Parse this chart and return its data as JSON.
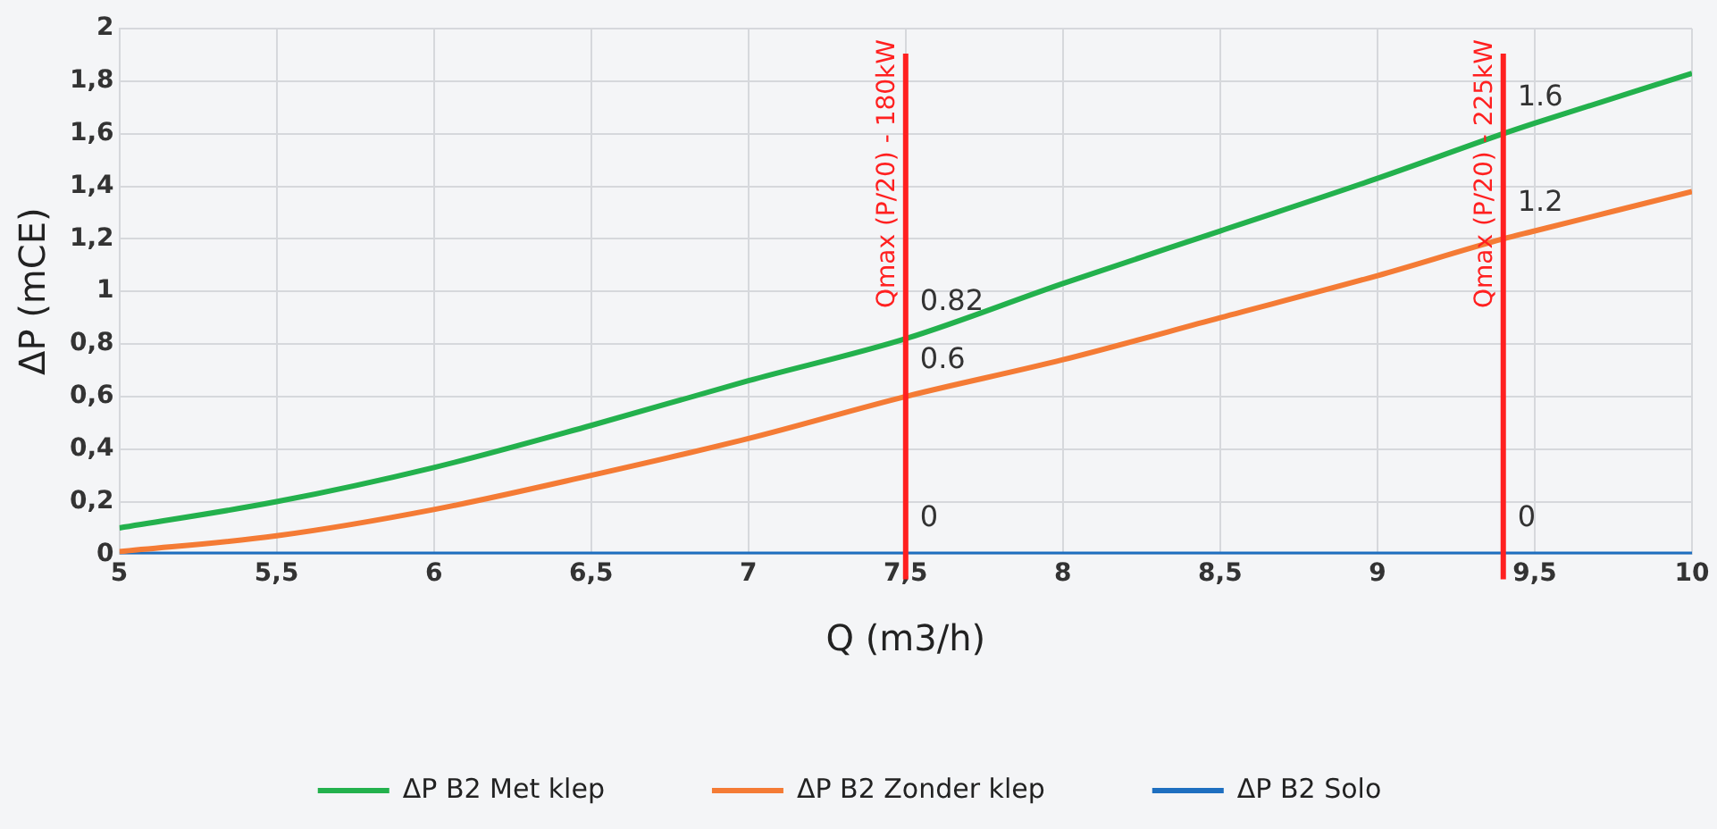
{
  "chart_data": {
    "type": "line",
    "xlabel": "Q (m3/h)",
    "ylabel": "ΔP (mCE)",
    "x": [
      5,
      5.5,
      6,
      6.5,
      7,
      7.5,
      8,
      8.5,
      9,
      9.4,
      9.5,
      10
    ],
    "series": [
      {
        "name": "ΔP B2 Met klep",
        "color": "#23b14d",
        "values": [
          0.1,
          0.2,
          0.33,
          0.49,
          0.66,
          0.82,
          1.03,
          1.23,
          1.43,
          1.6,
          1.64,
          1.83
        ],
        "value_labels": [
          null,
          null,
          null,
          null,
          null,
          "0.82",
          null,
          null,
          null,
          "1.6",
          null,
          null
        ]
      },
      {
        "name": "ΔP B2 Zonder klep",
        "color": "#f47b35",
        "values": [
          0.01,
          0.07,
          0.17,
          0.3,
          0.44,
          0.6,
          0.74,
          0.9,
          1.06,
          1.2,
          1.23,
          1.38
        ],
        "value_labels": [
          null,
          null,
          null,
          null,
          null,
          "0.6",
          null,
          null,
          null,
          "1.2",
          null,
          null
        ]
      },
      {
        "name": "ΔP B2 Solo",
        "color": "#1e6fc0",
        "values": [
          0,
          0,
          0,
          0,
          0,
          0,
          0,
          0,
          0,
          0,
          0,
          0
        ],
        "value_labels": [
          null,
          null,
          null,
          null,
          null,
          "0",
          null,
          null,
          null,
          "0",
          null,
          null
        ]
      }
    ],
    "xlim": [
      5,
      10
    ],
    "xticks": [
      5,
      {
        "value": 5.5,
        "label": "5,5"
      },
      6,
      {
        "value": 6.5,
        "label": "6,5"
      },
      7,
      {
        "value": 7.5,
        "label": "7,5"
      },
      8,
      {
        "value": 8.5,
        "label": "8,5"
      },
      9,
      {
        "value": 9.5,
        "label": "9,5"
      },
      10
    ],
    "ylim": [
      0,
      2
    ],
    "yticks": [
      0,
      {
        "value": 0.2,
        "label": "0,2"
      },
      {
        "value": 0.4,
        "label": "0,4"
      },
      {
        "value": 0.6,
        "label": "0,6"
      },
      {
        "value": 0.8,
        "label": "0,8"
      },
      1,
      {
        "value": 1.2,
        "label": "1,2"
      },
      {
        "value": 1.4,
        "label": "1,4"
      },
      {
        "value": 1.6,
        "label": "1,6"
      },
      {
        "value": 1.8,
        "label": "1,8"
      },
      2
    ],
    "ref_lines": [
      {
        "axis": "x",
        "value": 7.5,
        "label": "Qmax (P/20) - 180kW",
        "color": "#ff2020"
      },
      {
        "axis": "x",
        "value": 9.4,
        "label": "Qmax (P/20) - 225kW",
        "color": "#ff2020"
      }
    ],
    "grid": true,
    "legend": "bottom",
    "marker": "none",
    "line_style": "solid"
  }
}
